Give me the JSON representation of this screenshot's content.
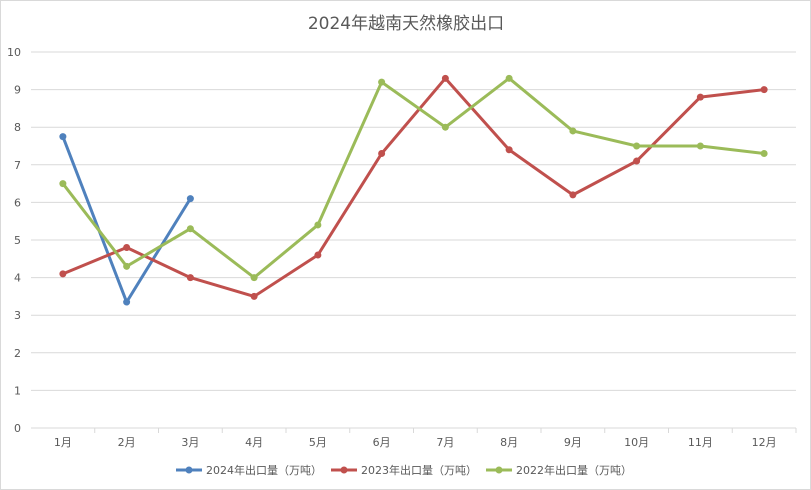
{
  "chart_data": {
    "type": "line",
    "title": "2024年越南天然橡胶出口",
    "xlabel": "",
    "ylabel": "",
    "ylim": [
      0,
      10
    ],
    "yticks": [
      0,
      1,
      2,
      3,
      4,
      5,
      6,
      7,
      8,
      9,
      10
    ],
    "grid": true,
    "legend": "bottom",
    "categories": [
      "1月",
      "2月",
      "3月",
      "4月",
      "5月",
      "6月",
      "7月",
      "8月",
      "9月",
      "10月",
      "11月",
      "12月"
    ],
    "series": [
      {
        "name": "2024年出口量（万吨）",
        "color": "#4f81bd",
        "values": [
          7.75,
          3.35,
          6.1,
          null,
          null,
          null,
          null,
          null,
          null,
          null,
          null,
          null
        ]
      },
      {
        "name": "2023年出口量（万吨）",
        "color": "#c0504d",
        "values": [
          4.1,
          4.8,
          4.0,
          3.5,
          4.6,
          7.3,
          9.3,
          7.4,
          6.2,
          7.1,
          8.8,
          9.0
        ]
      },
      {
        "name": "2022年出口量（万吨）",
        "color": "#9bbb59",
        "values": [
          6.5,
          4.3,
          5.3,
          4.0,
          5.4,
          9.2,
          8.0,
          9.3,
          7.9,
          7.5,
          7.5,
          7.3
        ]
      }
    ]
  }
}
